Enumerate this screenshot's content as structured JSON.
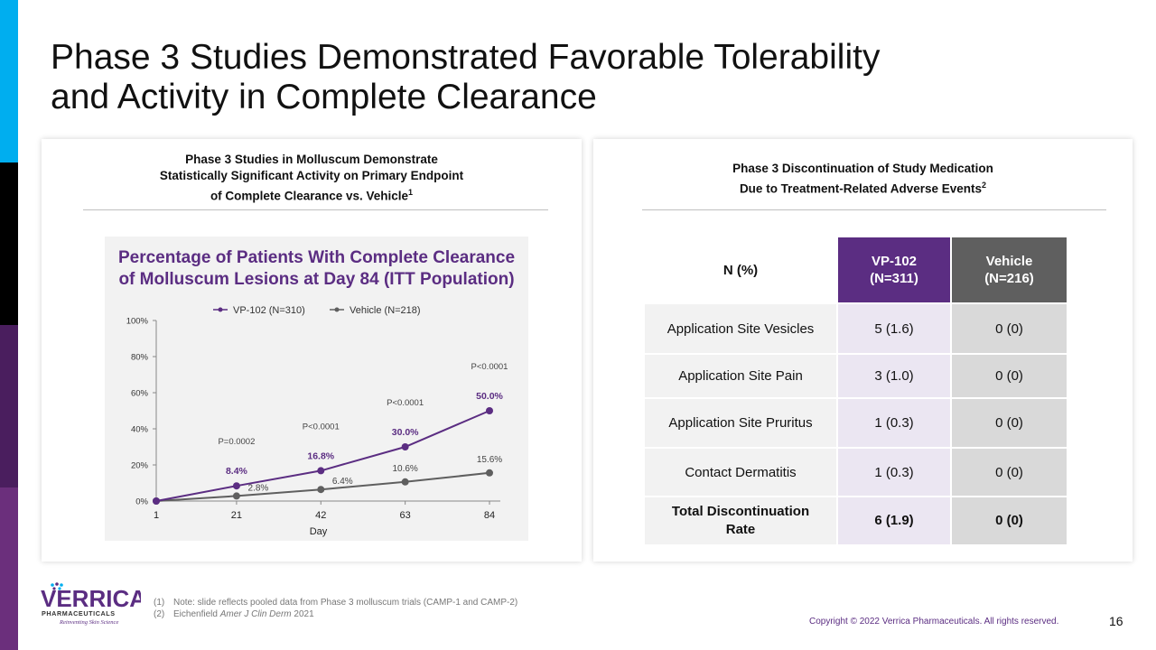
{
  "title_line1": "Phase 3 Studies Demonstrated Favorable Tolerability",
  "title_line2": "and Activity in Complete Clearance",
  "colors": {
    "purple": "#5b2d82",
    "gray": "#5f5f5f",
    "cyan": "#00aeef",
    "black": "#000000",
    "deep_purple": "#4a1e5e",
    "plum": "#6b2f7c"
  },
  "left_panel": {
    "heading_line1": "Phase 3 Studies in Molluscum Demonstrate",
    "heading_line2": "Statistically Significant Activity on Primary Endpoint",
    "heading_line3": "of Complete Clearance vs. Vehicle",
    "heading_sup": "1"
  },
  "chart_data": {
    "type": "line",
    "title_line1": "Percentage of Patients With Complete Clearance",
    "title_line2": "of Molluscum Lesions at Day 84 (ITT Population)",
    "xlabel": "Day",
    "ylabel": "",
    "x": [
      1,
      21,
      42,
      63,
      84
    ],
    "x_tick_labels": [
      "1",
      "21",
      "42",
      "63",
      "84"
    ],
    "ylim": [
      0,
      100
    ],
    "y_ticks": [
      0,
      20,
      40,
      60,
      80,
      100
    ],
    "y_tick_labels": [
      "0%",
      "20%",
      "40%",
      "60%",
      "80%",
      "100%"
    ],
    "legend_position": "top",
    "series": [
      {
        "name": "VP-102 (N=310)",
        "color": "#5b2d82",
        "values": [
          0,
          8.4,
          16.8,
          30.0,
          50.0
        ],
        "labels": [
          "",
          "8.4%",
          "16.8%",
          "30.0%",
          "50.0%"
        ]
      },
      {
        "name": "Vehicle (N=218)",
        "color": "#5f5f5f",
        "values": [
          0,
          2.8,
          6.4,
          10.6,
          15.6
        ],
        "labels": [
          "",
          "2.8%",
          "6.4%",
          "10.6%",
          "15.6%"
        ]
      }
    ],
    "p_values": [
      "",
      "P=0.0002",
      "P<0.0001",
      "P<0.0001",
      "P<0.0001"
    ]
  },
  "right_panel": {
    "heading_line1": "Phase 3 Discontinuation of Study Medication",
    "heading_line2": "Due to Treatment-Related Adverse Events",
    "heading_sup": "2",
    "table": {
      "col0": "N (%)",
      "col1_line1": "VP-102",
      "col1_line2": "(N=311)",
      "col2_line1": "Vehicle",
      "col2_line2": "(N=216)",
      "rows": [
        {
          "label": "Application Site Vesicles",
          "vp102": "5 (1.6)",
          "vehicle": "0 (0)"
        },
        {
          "label": "Application Site Pain",
          "vp102": "3 (1.0)",
          "vehicle": "0 (0)"
        },
        {
          "label": "Application Site Pruritus",
          "vp102": "1 (0.3)",
          "vehicle": "0 (0)"
        },
        {
          "label": "Contact Dermatitis",
          "vp102": "1 (0.3)",
          "vehicle": "0 (0)"
        }
      ],
      "total_line1": "Total Discontinuation",
      "total_line2": "Rate",
      "total_vp102": "6 (1.9)",
      "total_vehicle": "0 (0)"
    }
  },
  "logo": {
    "name": "VERRICA",
    "subtitle": "PHARMACEUTICALS",
    "tagline": "Reinventing Skin Science"
  },
  "footnotes": {
    "fn1_num": "(1)",
    "fn1": "Note: slide reflects pooled data from Phase 3 molluscum trials (CAMP-1 and CAMP-2)",
    "fn2_num": "(2)",
    "fn2_author": "Eichenfield",
    "fn2_journal": "Amer J Clin Derm",
    "fn2_year": "2021"
  },
  "copyright": "Copyright © 2022 Verrica Pharmaceuticals. All rights reserved.",
  "page_number": "16"
}
